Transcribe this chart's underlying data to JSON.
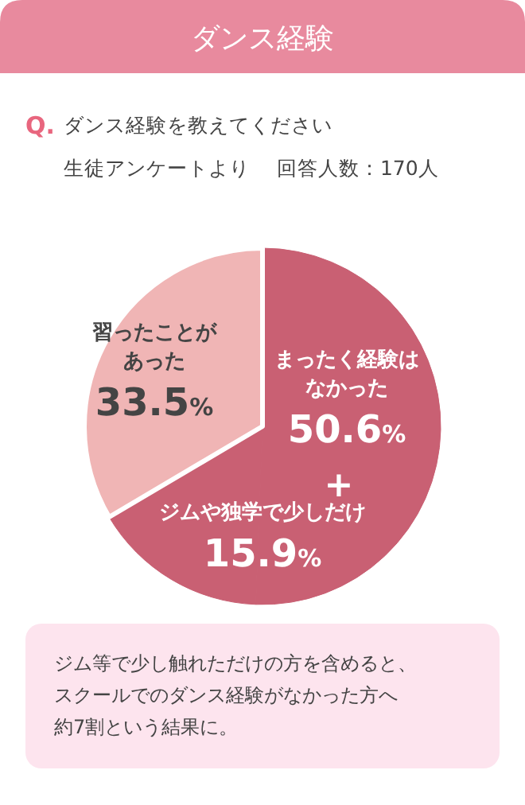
{
  "chart_data": {
    "type": "pie",
    "title": "ダンス経験",
    "subtitle": "ダンス経験を教えてください",
    "categories": [
      "まったく経験はなかった",
      "ジムや独学で少しだけ",
      "習ったことがあった"
    ],
    "values": [
      50.6,
      15.9,
      33.5
    ],
    "colors": [
      "#c96073",
      "#c96073",
      "#f0b5b5"
    ],
    "value_labels": [
      "50.6%",
      "15.9%",
      "33.5%"
    ],
    "annotations": [
      "Q.",
      "生徒アンケートより　 回答人数：170人",
      "+",
      "ジム等で少し触れただけの方を含めると、",
      "スクールでのダンス経験がなかった方へ",
      "約7割という結果に。"
    ]
  }
}
